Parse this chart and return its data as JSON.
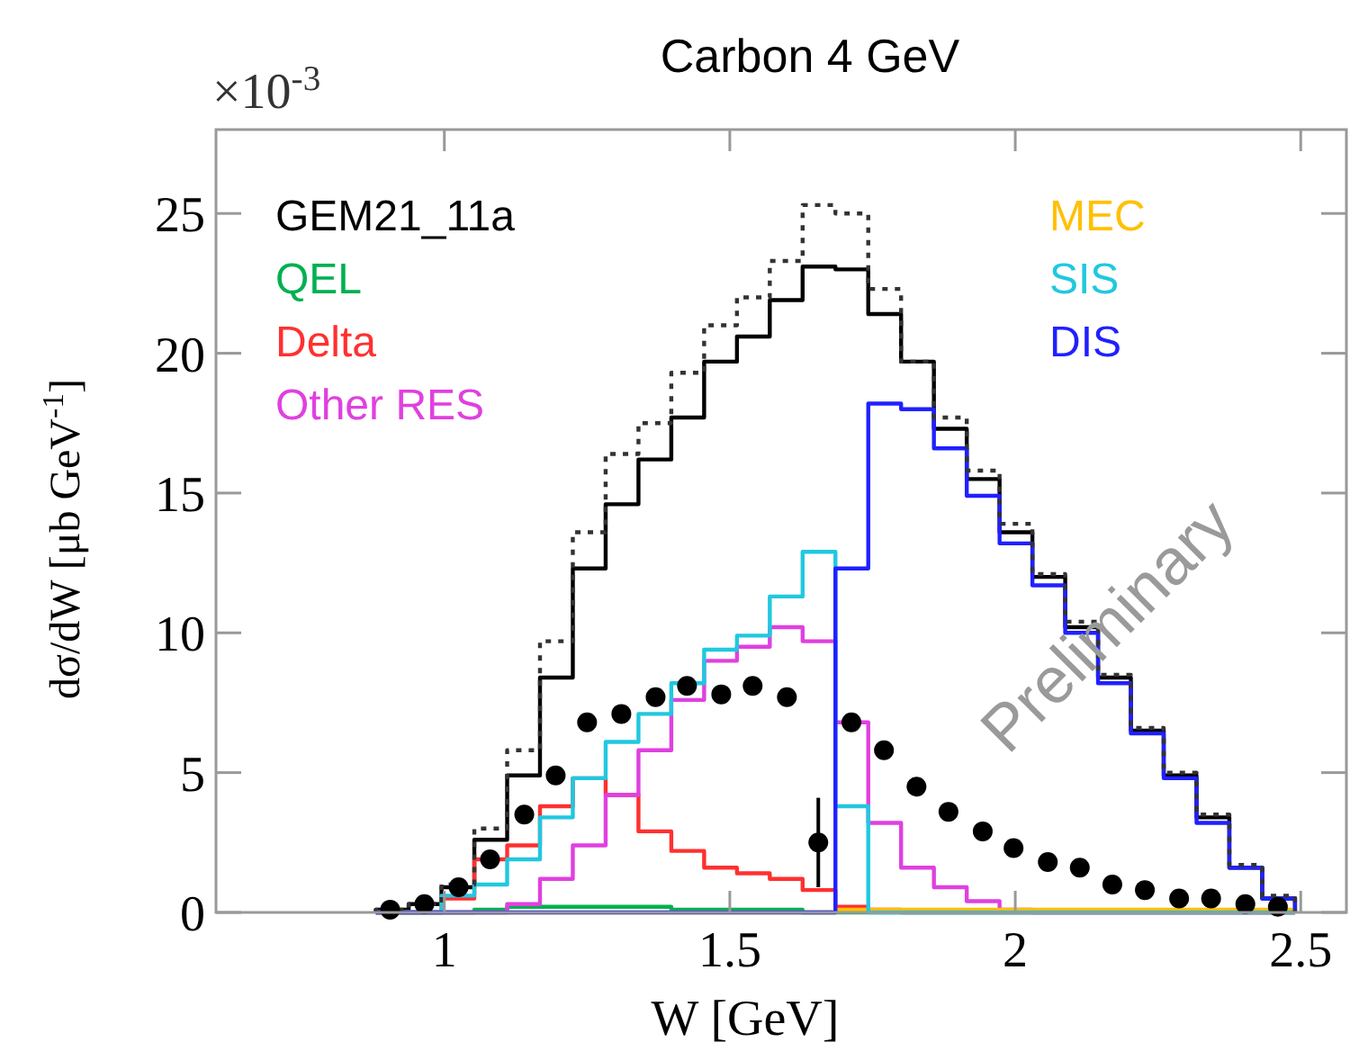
{
  "chart_data": {
    "type": "histogram",
    "title": "Carbon 4 GeV",
    "xlabel": "W [GeV]",
    "ylabel": "dσ/dW [μb GeV$^{-1}$]",
    "annotations": [
      "×10$^{-3}$",
      "Preliminary"
    ],
    "bins": [
      0.88,
      0.9375,
      0.995,
      1.0525,
      1.11,
      1.1675,
      1.225,
      1.2825,
      1.34,
      1.3975,
      1.455,
      1.5125,
      1.57,
      1.6275,
      1.685,
      1.7425,
      1.8,
      1.8575,
      1.915,
      1.9725,
      2.03,
      2.0875,
      2.145,
      2.2025,
      2.26,
      2.3175,
      2.375,
      2.4325,
      2.49
    ],
    "xlim": [
      0.6,
      2.58
    ],
    "xticks": [
      1,
      1.5,
      2,
      2.5
    ],
    "ylim": [
      0,
      28
    ],
    "yticks": [
      0,
      5,
      10,
      15,
      20,
      25
    ],
    "grid": false,
    "legend": "top",
    "series": [
      {
        "name": "GEM21_11a",
        "color": "#000000",
        "values": [
          0.1,
          0.3,
          0.9,
          2.6,
          4.9,
          8.4,
          12.3,
          14.6,
          16.2,
          17.7,
          19.7,
          20.6,
          21.9,
          23.1,
          23.0,
          21.4,
          19.7,
          17.3,
          15.5,
          13.6,
          12.0,
          10.2,
          8.4,
          6.5,
          4.9,
          3.4,
          1.6,
          0.5
        ]
      },
      {
        "name": "QEL",
        "color": "#00b050",
        "values": [
          0,
          0,
          0,
          0.1,
          0.2,
          0.2,
          0.2,
          0.2,
          0.2,
          0.1,
          0.1,
          0.1,
          0.1,
          0,
          0,
          0,
          0,
          0,
          0,
          0,
          0,
          0,
          0,
          0,
          0,
          0,
          0,
          0
        ]
      },
      {
        "name": "Delta",
        "color": "#ff3030",
        "values": [
          0,
          0,
          0.5,
          1.9,
          2.4,
          3.8,
          4.8,
          4.2,
          2.9,
          2.2,
          1.6,
          1.4,
          1.2,
          0.8,
          0.2,
          0.1,
          0,
          0,
          0,
          0,
          0,
          0,
          0,
          0,
          0,
          0,
          0,
          0
        ]
      },
      {
        "name": "Other RES",
        "color": "#e040e0",
        "values": [
          0,
          0,
          0,
          0,
          0.3,
          1.2,
          2.4,
          4.2,
          5.8,
          7.6,
          9.0,
          9.5,
          10.2,
          9.7,
          6.8,
          3.2,
          1.6,
          0.9,
          0.4,
          0.1,
          0,
          0,
          0,
          0,
          0,
          0,
          0,
          0
        ]
      },
      {
        "name": "MEC",
        "color": "#ffc000",
        "values": [
          0,
          0,
          0,
          0,
          0,
          0,
          0,
          0,
          0,
          0,
          0,
          0,
          0,
          0,
          0.1,
          0.1,
          0.1,
          0.1,
          0.1,
          0.1,
          0.1,
          0.1,
          0.1,
          0.1,
          0.1,
          0.1,
          0.1,
          0.1
        ]
      },
      {
        "name": "SIS",
        "color": "#20c8e0",
        "values": [
          0,
          0,
          0.6,
          1.0,
          1.9,
          3.4,
          4.8,
          6.1,
          7.1,
          8.2,
          9.4,
          9.9,
          11.3,
          12.9,
          3.8,
          0,
          0,
          0,
          0,
          0,
          0,
          0,
          0,
          0,
          0,
          0,
          0,
          0
        ]
      },
      {
        "name": "DIS",
        "color": "#2020ff",
        "values": [
          0,
          0,
          0,
          0,
          0,
          0,
          0,
          0,
          0,
          0,
          0,
          0,
          0,
          0,
          12.3,
          18.2,
          18.0,
          16.6,
          14.9,
          13.2,
          11.7,
          10.0,
          8.2,
          6.4,
          4.8,
          3.2,
          1.6,
          0.5
        ]
      },
      {
        "color": "#333333",
        "line_style": "dotted",
        "values": [
          0.1,
          0.3,
          1.0,
          3.0,
          5.8,
          9.7,
          13.6,
          16.4,
          17.5,
          19.3,
          21.0,
          22.0,
          23.3,
          25.3,
          25.0,
          22.3,
          19.7,
          17.7,
          15.8,
          13.9,
          12.1,
          10.4,
          8.5,
          6.6,
          5.0,
          3.5,
          1.7,
          0.6
        ]
      },
      {
        "type": "scatter",
        "color": "#000000",
        "marker": "circle",
        "x": [
          0.905,
          0.965,
          1.025,
          1.08,
          1.14,
          1.195,
          1.25,
          1.31,
          1.37,
          1.425,
          1.485,
          1.54,
          1.6,
          1.655,
          1.713,
          1.77,
          1.827,
          1.883,
          1.943,
          1.997,
          2.057,
          2.113,
          2.17,
          2.227,
          2.287,
          2.343,
          2.403,
          2.46
        ],
        "values": [
          0.1,
          0.3,
          0.9,
          1.9,
          3.5,
          4.9,
          6.8,
          7.1,
          7.7,
          8.1,
          7.8,
          8.1,
          7.7,
          2.5,
          6.8,
          5.8,
          4.5,
          3.6,
          2.9,
          2.3,
          1.8,
          1.6,
          1.0,
          0.8,
          0.5,
          0.5,
          0.3,
          0.2
        ],
        "errors": [
          null,
          null,
          null,
          null,
          null,
          null,
          null,
          null,
          null,
          null,
          null,
          null,
          null,
          1.6,
          null,
          null,
          null,
          null,
          null,
          null,
          null,
          null,
          null,
          null,
          null,
          null,
          null,
          null
        ]
      }
    ]
  }
}
